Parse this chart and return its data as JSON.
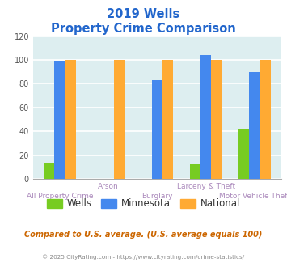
{
  "title_line1": "2019 Wells",
  "title_line2": "Property Crime Comparison",
  "title_color": "#2266cc",
  "categories": [
    "All Property Crime",
    "Arson",
    "Burglary",
    "Larceny & Theft",
    "Motor Vehicle Theft"
  ],
  "wells_values": [
    13,
    0,
    0,
    12,
    42
  ],
  "minnesota_values": [
    99,
    0,
    83,
    104,
    90
  ],
  "national_values": [
    100,
    100,
    100,
    100,
    100
  ],
  "wells_color": "#77cc22",
  "minnesota_color": "#4488ee",
  "national_color": "#ffaa33",
  "ylim": [
    0,
    120
  ],
  "yticks": [
    0,
    20,
    40,
    60,
    80,
    100,
    120
  ],
  "plot_bg_color": "#ddeef0",
  "grid_color": "#ffffff",
  "xlabel_top": [
    "",
    "Arson",
    "",
    "Larceny & Theft",
    ""
  ],
  "xlabel_bottom": [
    "All Property Crime",
    "",
    "Burglary",
    "",
    "Motor Vehicle Theft"
  ],
  "label_color": "#aa88bb",
  "footer_text": "Compared to U.S. average. (U.S. average equals 100)",
  "footer_color": "#cc6600",
  "copyright_text": "© 2025 CityRating.com - https://www.cityrating.com/crime-statistics/",
  "copyright_color": "#888888",
  "legend_labels": [
    "Wells",
    "Minnesota",
    "National"
  ],
  "legend_text_color": "#333333",
  "bar_width": 0.22
}
